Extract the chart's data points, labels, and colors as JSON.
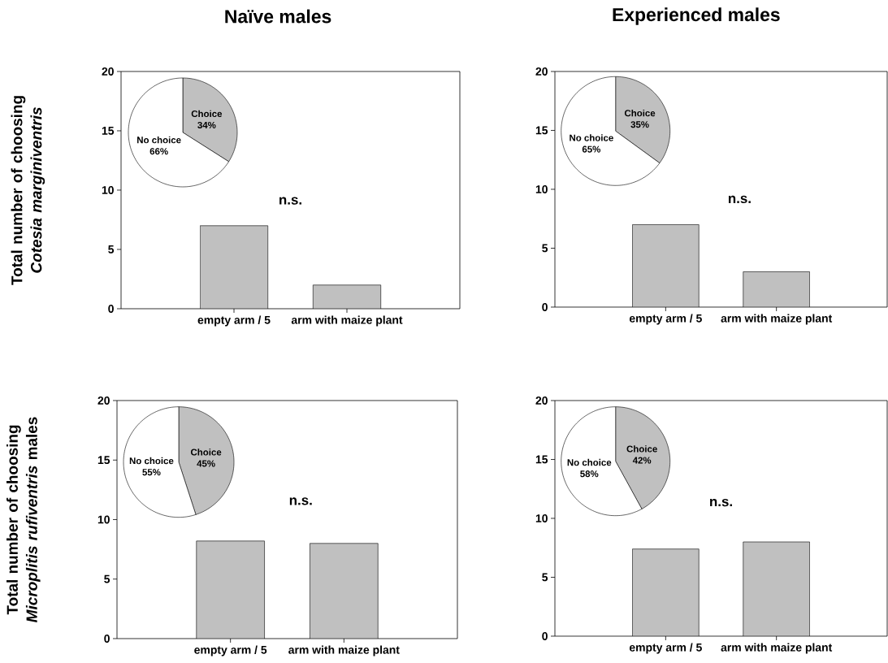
{
  "chart_data": [
    {
      "type": "bar",
      "title": "Naïve males",
      "ylabel": "Total number of choosing *Cotesia marginiventris*",
      "categories": [
        "empty arm / 5",
        "arm with maize plant"
      ],
      "values": [
        7,
        2
      ],
      "color": "#c0c0c0",
      "ylim": [
        0,
        20
      ],
      "yticks": [
        0,
        5,
        10,
        15,
        20
      ],
      "annotations": [
        "n.s."
      ]
    },
    {
      "type": "pie",
      "categories": [
        "Choice",
        "No choice"
      ],
      "values": [
        34,
        66
      ],
      "colors": [
        "#c0c0c0",
        "#ffffff"
      ],
      "value_labels": [
        "34%",
        "66%"
      ]
    },
    {
      "type": "bar",
      "title": "Experienced males",
      "categories": [
        "empty arm / 5",
        "arm with maize plant"
      ],
      "values": [
        7,
        3
      ],
      "color": "#c0c0c0",
      "ylim": [
        0,
        20
      ],
      "yticks": [
        0,
        5,
        10,
        15,
        20
      ],
      "annotations": [
        "n.s."
      ]
    },
    {
      "type": "pie",
      "categories": [
        "Choice",
        "No choice"
      ],
      "values": [
        35,
        65
      ],
      "colors": [
        "#c0c0c0",
        "#ffffff"
      ],
      "value_labels": [
        "35%",
        "65%"
      ]
    },
    {
      "type": "bar",
      "ylabel": "Total number of choosing *Microplitis rufiventris* males",
      "categories": [
        "empty arm / 5",
        "arm with maize plant"
      ],
      "values": [
        8.2,
        8
      ],
      "color": "#c0c0c0",
      "ylim": [
        0,
        20
      ],
      "yticks": [
        0,
        5,
        10,
        15,
        20
      ],
      "annotations": [
        "n.s."
      ]
    },
    {
      "type": "pie",
      "categories": [
        "Choice",
        "No choice"
      ],
      "values": [
        45,
        55
      ],
      "colors": [
        "#c0c0c0",
        "#ffffff"
      ],
      "value_labels": [
        "45%",
        "55%"
      ]
    },
    {
      "type": "bar",
      "categories": [
        "empty arm / 5",
        "arm with maize plant"
      ],
      "values": [
        7.4,
        8
      ],
      "color": "#c0c0c0",
      "ylim": [
        0,
        20
      ],
      "yticks": [
        0,
        5,
        10,
        15,
        20
      ],
      "annotations": [
        "n.s."
      ]
    },
    {
      "type": "pie",
      "categories": [
        "Choice",
        "No choice"
      ],
      "values": [
        42,
        58
      ],
      "colors": [
        "#c0c0c0",
        "#ffffff"
      ],
      "value_labels": [
        "42%",
        "58%"
      ]
    }
  ]
}
